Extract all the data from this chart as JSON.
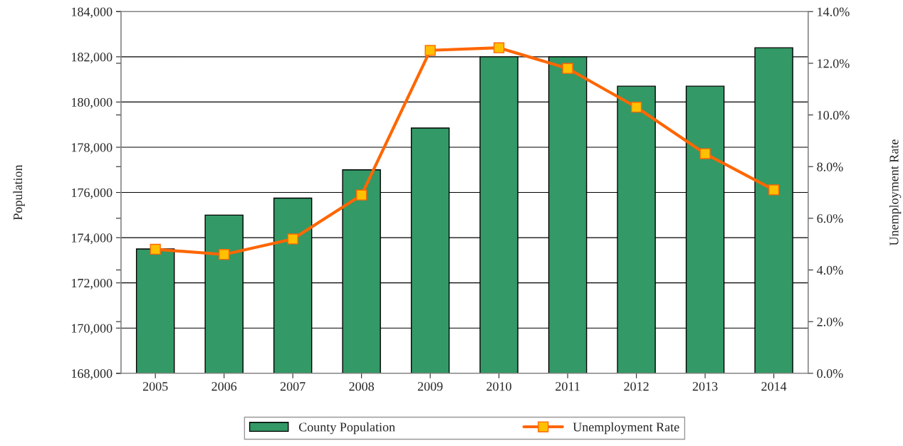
{
  "chart_data": {
    "type": "bar",
    "categories": [
      "2005",
      "2006",
      "2007",
      "2008",
      "2009",
      "2010",
      "2011",
      "2012",
      "2013",
      "2014"
    ],
    "series": [
      {
        "name": "County Population",
        "color": "#339966",
        "values": [
          173500,
          175000,
          175750,
          177000,
          178850,
          182000,
          182000,
          180700,
          180700,
          182400
        ]
      },
      {
        "name": "Unemployment Rate",
        "type": "line",
        "axis": "y2",
        "color": "#ff6600",
        "marker": "square",
        "values": [
          4.8,
          4.6,
          5.2,
          6.9,
          12.5,
          12.6,
          11.8,
          10.3,
          8.5,
          7.1
        ]
      }
    ],
    "ylabel": "Population",
    "y2label": "Unemployment Rate",
    "ylim": [
      168000,
      184000
    ],
    "yticks": [
      {
        "value": 168000,
        "label": "168,000"
      },
      {
        "value": 170000,
        "label": "170,000"
      },
      {
        "value": 172000,
        "label": "172,000"
      },
      {
        "value": 174000,
        "label": "174,000"
      },
      {
        "value": 176000,
        "label": "176,000"
      },
      {
        "value": 178000,
        "label": "178,000"
      },
      {
        "value": 180000,
        "label": "180,000"
      },
      {
        "value": 182000,
        "label": "182,000"
      },
      {
        "value": 184000,
        "label": "184,000"
      }
    ],
    "y2lim": [
      0,
      14
    ],
    "y2ticks": [
      {
        "value": 0,
        "label": "0.0%"
      },
      {
        "value": 2,
        "label": "2.0%"
      },
      {
        "value": 4,
        "label": "4.0%"
      },
      {
        "value": 6,
        "label": "6.0%"
      },
      {
        "value": 8,
        "label": "8.0%"
      },
      {
        "value": 10,
        "label": "10.0%"
      },
      {
        "value": 12,
        "label": "12.0%"
      },
      {
        "value": 14,
        "label": "14.0%"
      }
    ],
    "grid": "y",
    "legend": "bottom"
  }
}
